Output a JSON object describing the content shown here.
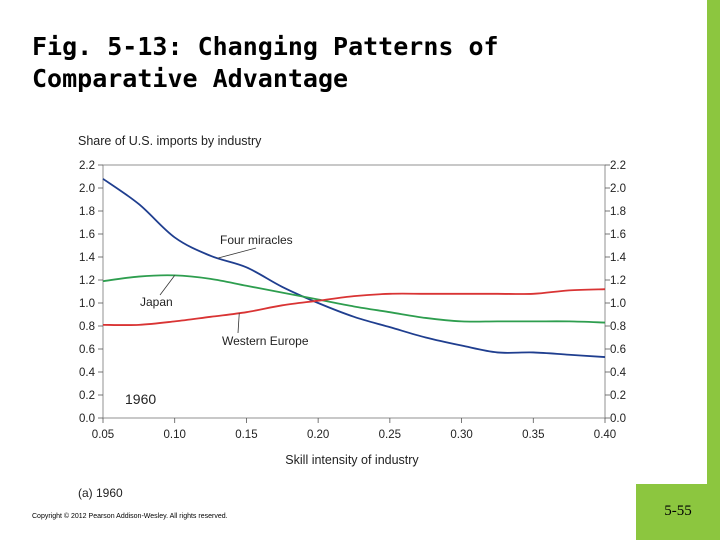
{
  "slide": {
    "title_line1": "Fig. 5-13:  Changing Patterns of",
    "title_line2": "Comparative Advantage",
    "copyright": "Copyright © 2012 Pearson Addison-Wesley. All rights reserved.",
    "page_number": "5-55"
  },
  "colors": {
    "accent": "#8cc63f",
    "four_miracles": "#1f3e8f",
    "japan": "#2e9e4f",
    "western_europe": "#d93434"
  },
  "chart_data": {
    "type": "line",
    "title": "Share of U.S. imports by industry",
    "xlabel": "Skill intensity of industry",
    "ylabel": "",
    "caption": "(a) 1960",
    "year_label": "1960",
    "xlim": [
      0.05,
      0.4
    ],
    "ylim": [
      0.0,
      2.2
    ],
    "x_ticks": [
      "0.05",
      "0.10",
      "0.15",
      "0.20",
      "0.25",
      "0.30",
      "0.35",
      "0.40"
    ],
    "y_ticks": [
      "0.0",
      "0.2",
      "0.4",
      "0.6",
      "0.8",
      "1.0",
      "1.2",
      "1.4",
      "1.6",
      "1.8",
      "2.0",
      "2.2"
    ],
    "x": [
      0.05,
      0.075,
      0.1,
      0.125,
      0.15,
      0.175,
      0.2,
      0.225,
      0.25,
      0.275,
      0.3,
      0.325,
      0.35,
      0.375,
      0.4
    ],
    "series": [
      {
        "name": "Four miracles",
        "color": "#1f3e8f",
        "values": [
          2.08,
          1.86,
          1.57,
          1.41,
          1.31,
          1.14,
          1.0,
          0.88,
          0.79,
          0.7,
          0.63,
          0.57,
          0.57,
          0.55,
          0.53
        ]
      },
      {
        "name": "Japan",
        "color": "#2e9e4f",
        "values": [
          1.19,
          1.23,
          1.24,
          1.21,
          1.15,
          1.09,
          1.03,
          0.97,
          0.92,
          0.87,
          0.84,
          0.84,
          0.84,
          0.84,
          0.83
        ]
      },
      {
        "name": "Western Europe",
        "color": "#d93434",
        "values": [
          0.81,
          0.81,
          0.84,
          0.88,
          0.92,
          0.98,
          1.02,
          1.06,
          1.08,
          1.08,
          1.08,
          1.08,
          1.08,
          1.11,
          1.12
        ]
      }
    ],
    "annotations": [
      {
        "text": "Four miracles",
        "series": "Four miracles",
        "at_x": 0.13
      },
      {
        "text": "Japan",
        "series": "Japan",
        "at_x": 0.1
      },
      {
        "text": "Western Europe",
        "series": "Western Europe",
        "at_x": 0.145
      }
    ],
    "grid": false
  }
}
